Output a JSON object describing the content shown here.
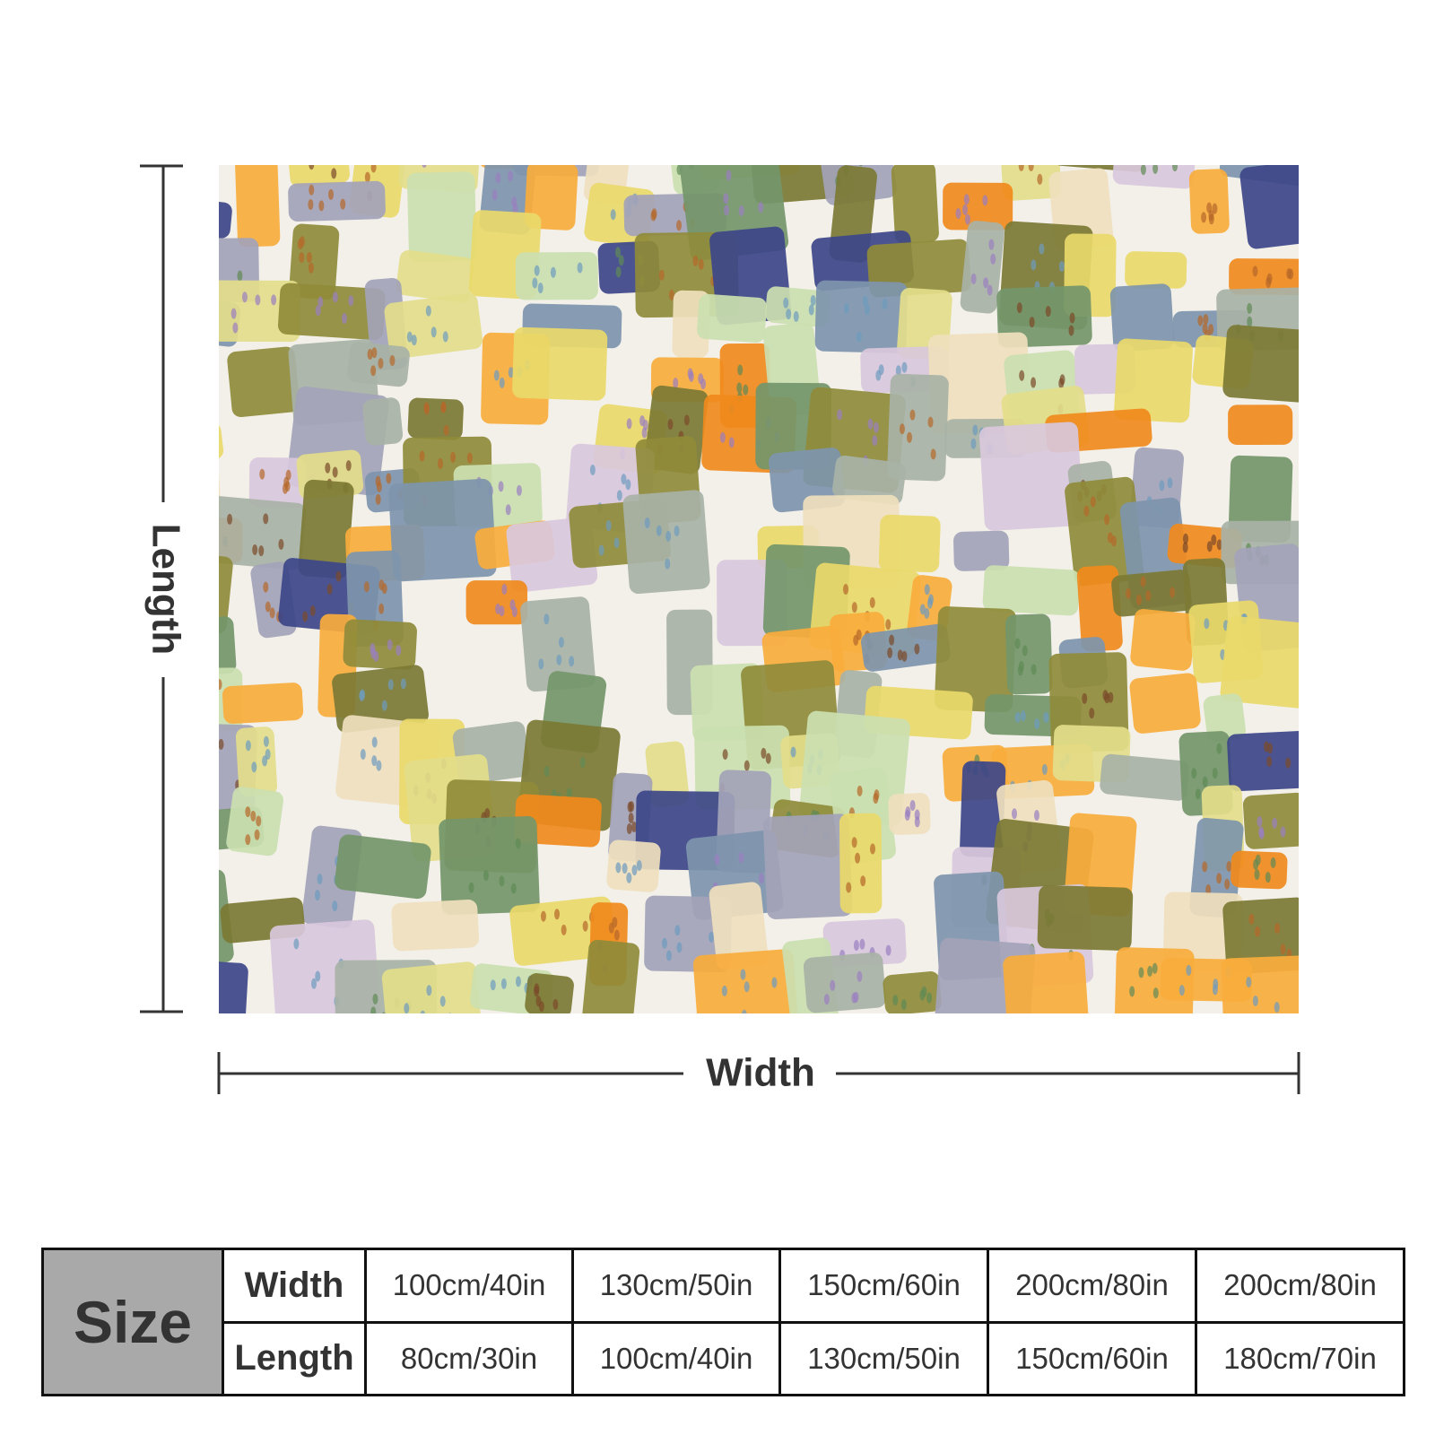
{
  "dimensions": {
    "length_label": "Length",
    "width_label": "Width"
  },
  "table": {
    "header": "Size",
    "rows": [
      [
        "Width",
        "100cm/40in",
        "130cm/50in",
        "150cm/60in",
        "200cm/80in",
        "200cm/80in"
      ],
      [
        "Length",
        "80cm/30in",
        "100cm/40in",
        "130cm/50in",
        "150cm/60in",
        "180cm/70in"
      ]
    ]
  }
}
